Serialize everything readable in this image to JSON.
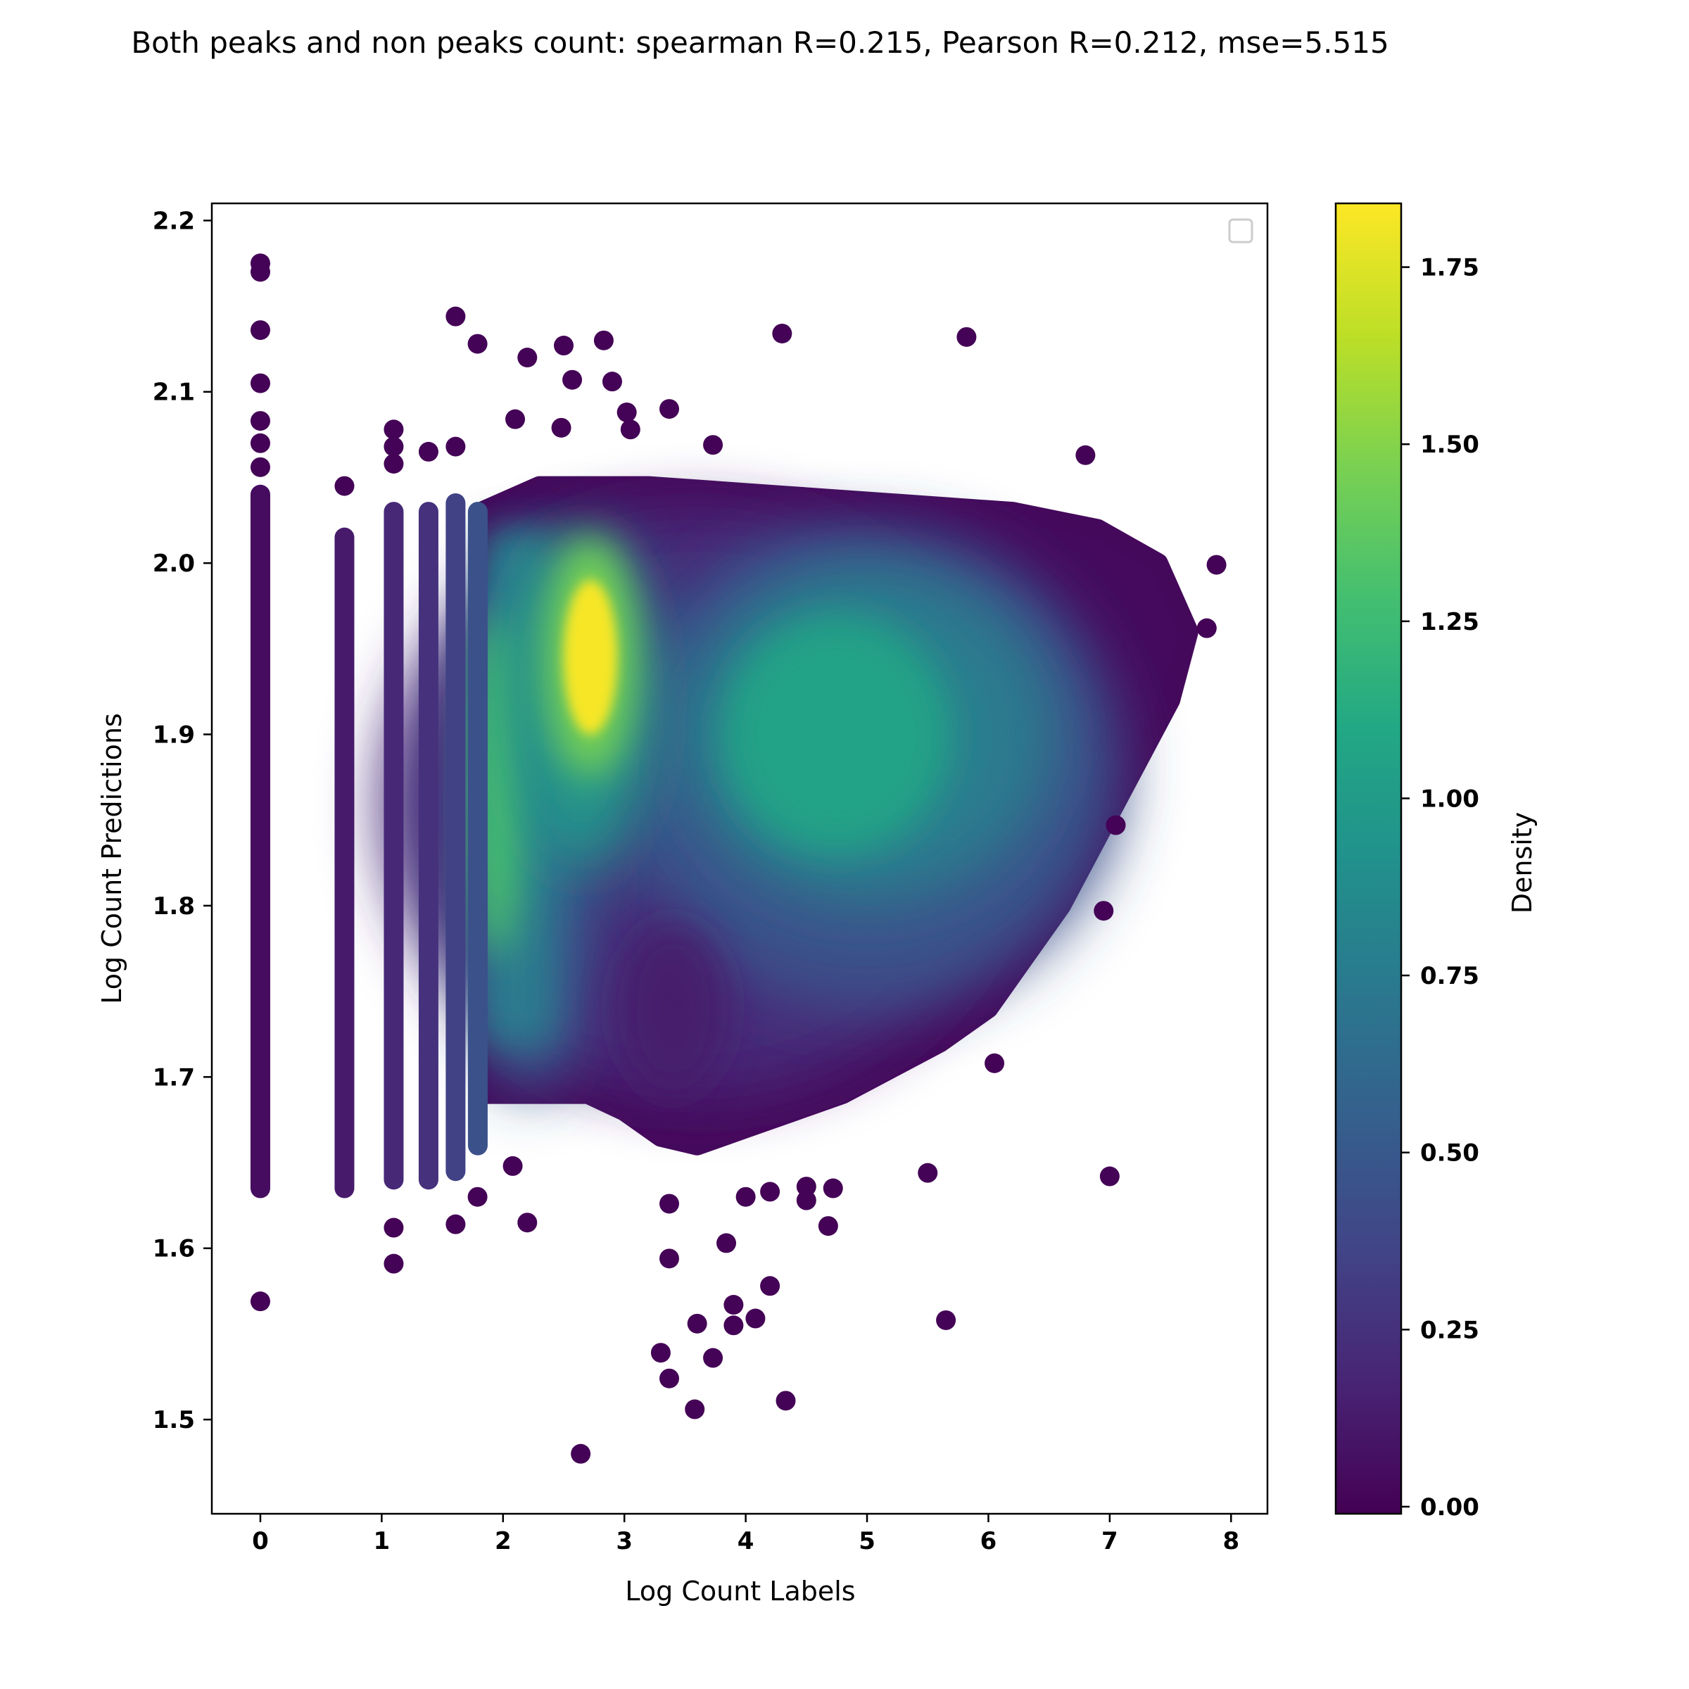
{
  "chart_data": {
    "type": "scatter",
    "title": "Both peaks and non peaks count: spearman R=0.215, Pearson R=0.212, mse=5.515",
    "xlabel": "Log Count Labels",
    "ylabel": "Log Count Predictions",
    "xlim": [
      -0.4,
      8.3
    ],
    "ylim": [
      1.445,
      2.21
    ],
    "xticks": [
      "0",
      "1",
      "2",
      "3",
      "4",
      "5",
      "6",
      "7",
      "8"
    ],
    "yticks": [
      "1.5",
      "1.6",
      "1.7",
      "1.8",
      "1.9",
      "2.0",
      "2.1",
      "2.2"
    ],
    "colorbar": {
      "label": "Density",
      "range": [
        -0.01,
        1.84
      ],
      "ticks": [
        "0.00",
        "0.25",
        "0.50",
        "0.75",
        "1.00",
        "1.25",
        "1.50",
        "1.75"
      ],
      "colormap": "viridis"
    },
    "legend": {
      "position": "top-right",
      "entries": []
    },
    "discrete_columns": [
      {
        "x": 0.0,
        "y_range": [
          1.635,
          2.04
        ],
        "density": 0.05
      },
      {
        "x": 0.693,
        "y_range": [
          1.635,
          2.015
        ],
        "density": 0.12
      },
      {
        "x": 1.099,
        "y_range": [
          1.64,
          2.03
        ],
        "density": 0.2
      },
      {
        "x": 1.386,
        "y_range": [
          1.64,
          2.03
        ],
        "density": 0.25
      },
      {
        "x": 1.609,
        "y_range": [
          1.645,
          2.035
        ],
        "density": 0.35
      },
      {
        "x": 1.792,
        "y_range": [
          1.66,
          2.03
        ],
        "density": 0.45
      }
    ],
    "density_peaks": [
      {
        "x": 2.7,
        "y": 1.945,
        "density": 1.82
      },
      {
        "x": 4.8,
        "y": 1.9,
        "density": 1.12
      },
      {
        "x": 1.95,
        "y": 1.87,
        "density": 1.3
      }
    ],
    "outliers": [
      {
        "x": 0.0,
        "y": 2.175
      },
      {
        "x": 0.0,
        "y": 2.17
      },
      {
        "x": 0.0,
        "y": 2.136
      },
      {
        "x": 0.0,
        "y": 2.105
      },
      {
        "x": 0.0,
        "y": 2.083
      },
      {
        "x": 0.0,
        "y": 2.07
      },
      {
        "x": 0.0,
        "y": 2.056
      },
      {
        "x": 0.0,
        "y": 1.569
      },
      {
        "x": 0.693,
        "y": 2.045
      },
      {
        "x": 1.099,
        "y": 2.078
      },
      {
        "x": 1.099,
        "y": 2.068
      },
      {
        "x": 1.099,
        "y": 2.058
      },
      {
        "x": 1.099,
        "y": 1.612
      },
      {
        "x": 1.099,
        "y": 1.591
      },
      {
        "x": 1.386,
        "y": 2.065
      },
      {
        "x": 1.609,
        "y": 2.068
      },
      {
        "x": 1.609,
        "y": 1.614
      },
      {
        "x": 1.609,
        "y": 2.144
      },
      {
        "x": 1.79,
        "y": 2.128
      },
      {
        "x": 2.2,
        "y": 2.12
      },
      {
        "x": 2.5,
        "y": 2.127
      },
      {
        "x": 2.57,
        "y": 2.107
      },
      {
        "x": 2.83,
        "y": 2.13
      },
      {
        "x": 2.9,
        "y": 2.106
      },
      {
        "x": 2.1,
        "y": 2.084
      },
      {
        "x": 2.48,
        "y": 2.079
      },
      {
        "x": 3.02,
        "y": 2.088
      },
      {
        "x": 3.05,
        "y": 2.078
      },
      {
        "x": 3.37,
        "y": 2.09
      },
      {
        "x": 3.73,
        "y": 2.069
      },
      {
        "x": 4.3,
        "y": 2.134
      },
      {
        "x": 5.82,
        "y": 2.132
      },
      {
        "x": 6.8,
        "y": 2.063
      },
      {
        "x": 7.88,
        "y": 1.999
      },
      {
        "x": 7.8,
        "y": 1.962
      },
      {
        "x": 7.05,
        "y": 1.847
      },
      {
        "x": 6.95,
        "y": 1.797
      },
      {
        "x": 7.0,
        "y": 1.642
      },
      {
        "x": 6.05,
        "y": 1.708
      },
      {
        "x": 5.65,
        "y": 1.558
      },
      {
        "x": 5.5,
        "y": 1.644
      },
      {
        "x": 4.68,
        "y": 1.613
      },
      {
        "x": 4.2,
        "y": 1.578
      },
      {
        "x": 4.08,
        "y": 1.559
      },
      {
        "x": 3.9,
        "y": 1.567
      },
      {
        "x": 3.9,
        "y": 1.555
      },
      {
        "x": 3.84,
        "y": 1.603
      },
      {
        "x": 3.6,
        "y": 1.556
      },
      {
        "x": 3.73,
        "y": 1.536
      },
      {
        "x": 3.3,
        "y": 1.539
      },
      {
        "x": 3.37,
        "y": 1.524
      },
      {
        "x": 3.58,
        "y": 1.506
      },
      {
        "x": 4.33,
        "y": 1.511
      },
      {
        "x": 2.64,
        "y": 1.48
      },
      {
        "x": 3.37,
        "y": 1.594
      },
      {
        "x": 3.37,
        "y": 1.626
      },
      {
        "x": 2.2,
        "y": 1.615
      },
      {
        "x": 1.79,
        "y": 1.63
      },
      {
        "x": 2.08,
        "y": 1.648
      },
      {
        "x": 4.0,
        "y": 1.63
      },
      {
        "x": 4.5,
        "y": 1.628
      },
      {
        "x": 4.5,
        "y": 1.636
      },
      {
        "x": 4.72,
        "y": 1.635
      },
      {
        "x": 4.2,
        "y": 1.633
      }
    ]
  }
}
